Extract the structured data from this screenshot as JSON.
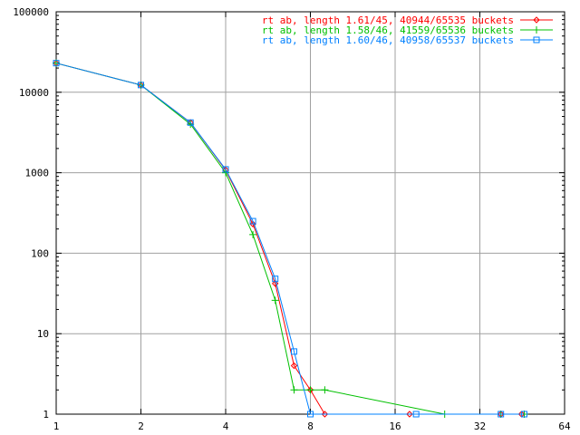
{
  "chart_data": {
    "type": "line",
    "title": "",
    "xlabel": "",
    "ylabel": "",
    "xscale": "log2",
    "yscale": "log10",
    "xlim": [
      1,
      64
    ],
    "ylim": [
      1,
      100000
    ],
    "xticks": [
      "1",
      "2",
      "4",
      "8",
      "16",
      "32",
      "64"
    ],
    "xtick_values": [
      1,
      2,
      4,
      8,
      16,
      32,
      64
    ],
    "yticks": [
      "1",
      "10",
      "100",
      "1000",
      "10000",
      "100000"
    ],
    "ytick_values": [
      1,
      10,
      100,
      1000,
      10000,
      100000
    ],
    "grid": true,
    "legend_position": "top-right",
    "series": [
      {
        "name": "rt ab, length 1.61/45, 40944/65535 buckets",
        "color": "#ff0000",
        "marker": "diamond",
        "x": [
          1,
          2,
          3,
          4,
          5,
          6,
          7,
          8,
          9,
          18,
          38,
          45
        ],
        "y": [
          23000,
          12300,
          4200,
          1080,
          230,
          42,
          4,
          2,
          1,
          1,
          1,
          1
        ]
      },
      {
        "name": "rt ab, length 1.58/46, 41559/65536 buckets",
        "color": "#00c000",
        "marker": "plus",
        "x": [
          1,
          2,
          3,
          4,
          5,
          6,
          7,
          8,
          9,
          24,
          38,
          46
        ],
        "y": [
          23000,
          12300,
          4000,
          1000,
          170,
          26,
          2,
          2,
          2,
          1,
          1,
          1
        ]
      },
      {
        "name": "rt ab, length 1.60/46, 40958/65537 buckets",
        "color": "#0080ff",
        "marker": "square",
        "x": [
          1,
          2,
          3,
          4,
          5,
          6,
          7,
          8,
          19,
          38,
          46
        ],
        "y": [
          23000,
          12300,
          4200,
          1100,
          250,
          48,
          6,
          1,
          1,
          1,
          1
        ]
      }
    ]
  }
}
